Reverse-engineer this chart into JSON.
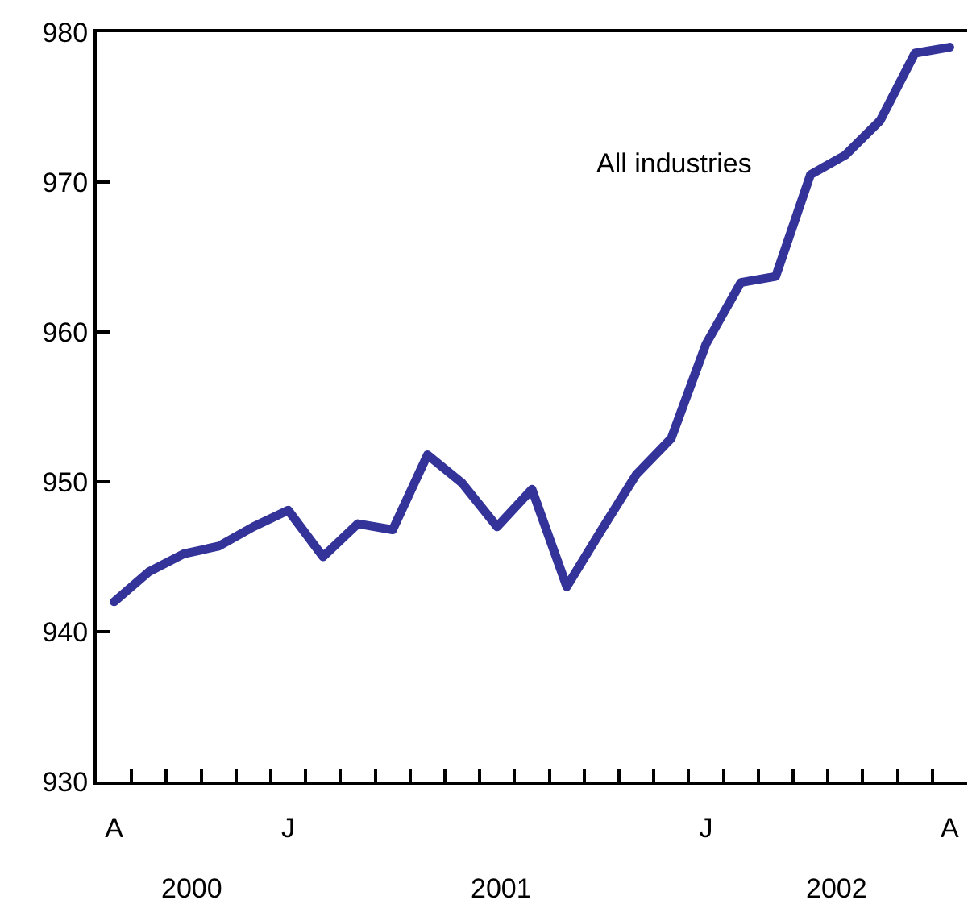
{
  "chart_data": {
    "type": "line",
    "categories": [
      "A",
      null,
      null,
      null,
      null,
      "J",
      null,
      null,
      null,
      null,
      null,
      null,
      null,
      null,
      null,
      null,
      null,
      "J",
      null,
      null,
      null,
      null,
      null,
      null,
      "A"
    ],
    "series": [
      {
        "name": "All industries",
        "color": "#333399",
        "values": [
          942,
          944,
          945.2,
          945.7,
          947,
          948.1,
          945,
          947.2,
          946.8,
          951.8,
          949.9,
          947,
          949.5,
          943,
          946.8,
          950.5,
          952.9,
          959.2,
          963.3,
          963.7,
          970.5,
          971.8,
          974.1,
          978.6,
          979
        ]
      }
    ],
    "ylim": [
      930,
      980
    ],
    "yticks": [
      930,
      940,
      950,
      960,
      970,
      980
    ],
    "annotations": [
      "2000",
      "2001",
      "2002"
    ],
    "grid": false,
    "legend": false,
    "marker": "none",
    "line_style": "solid"
  }
}
